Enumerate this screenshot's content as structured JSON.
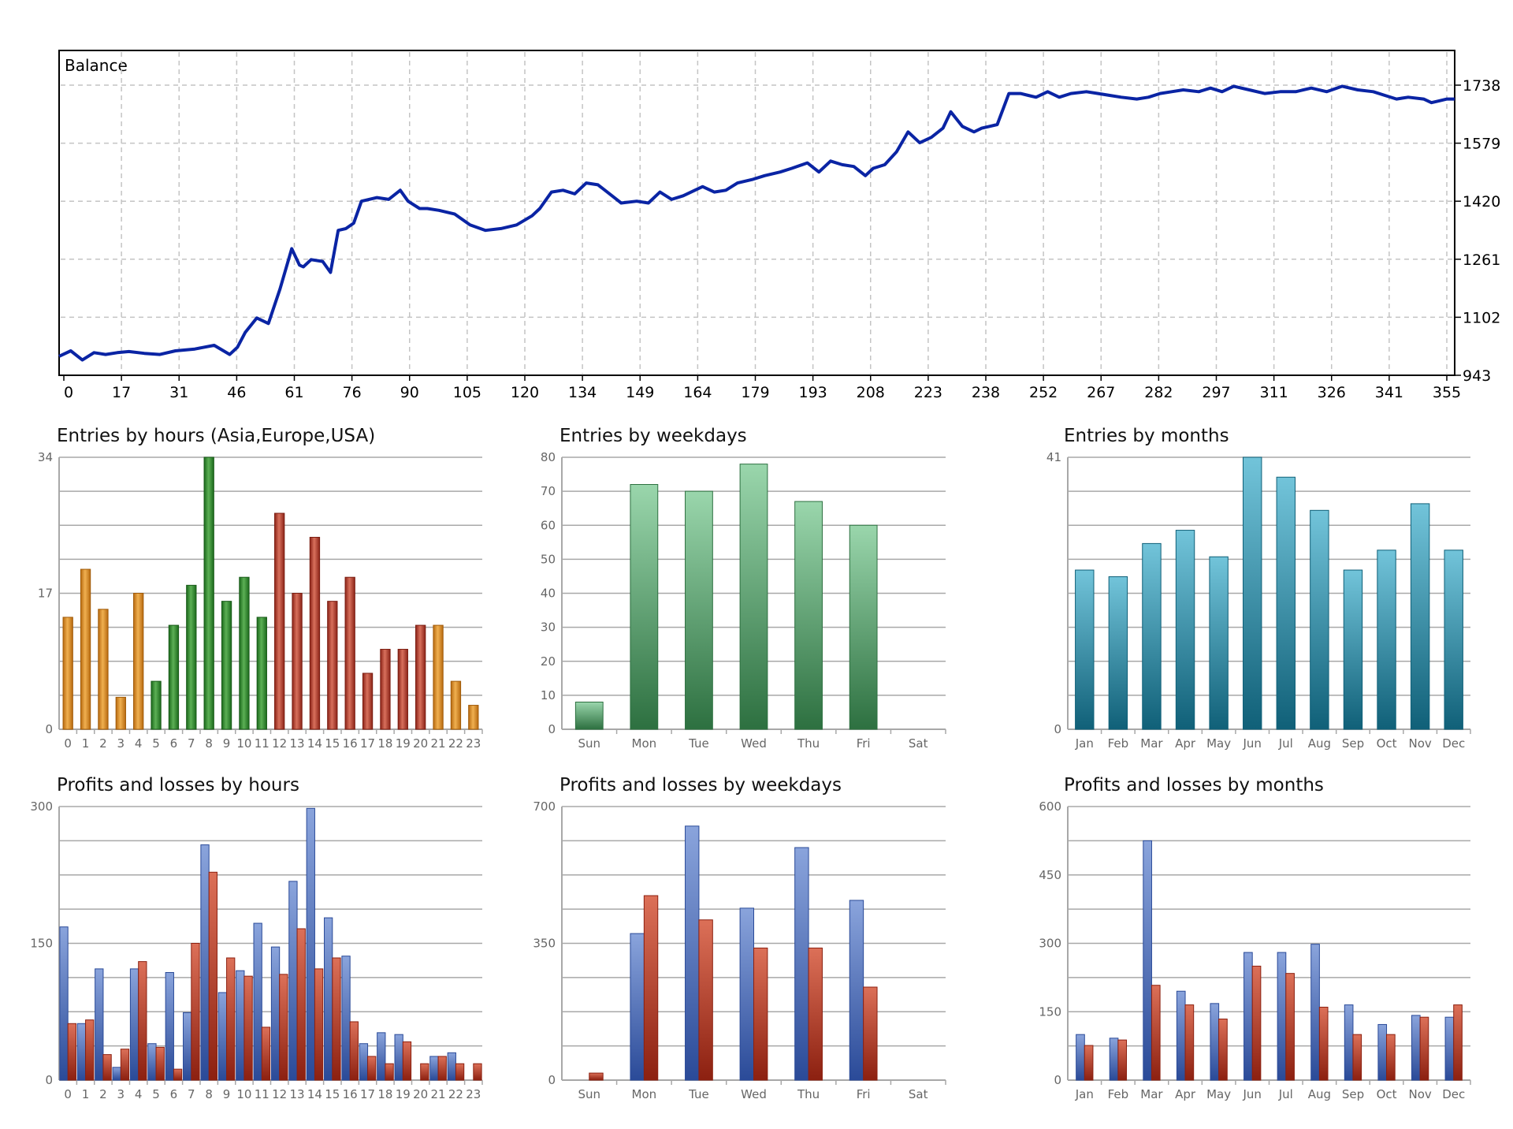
{
  "colors": {
    "balance_line": "#0a24a4",
    "grid_dashed": "#c0c0c0",
    "grid_solid": "#a8a8a8",
    "hours_asia": "#d4861c",
    "hours_europe": "#2e8a2a",
    "hours_usa": "#b3402c",
    "weekday_green": "#3a8a55",
    "month_teal": "#1f7f99",
    "profit_blue": "#3f65b4",
    "loss_red": "#b0321f"
  },
  "chart_data": [
    {
      "id": "balance",
      "type": "line",
      "title": "Balance",
      "x_ticks": [
        "0",
        "17",
        "31",
        "46",
        "61",
        "76",
        "90",
        "105",
        "120",
        "134",
        "149",
        "164",
        "179",
        "193",
        "208",
        "223",
        "238",
        "252",
        "267",
        "282",
        "297",
        "311",
        "326",
        "341",
        "355"
      ],
      "y_ticks": [
        "943",
        "1102",
        "1261",
        "1420",
        "1579",
        "1738"
      ],
      "xlim": [
        0,
        360
      ],
      "ylim": [
        943,
        1738
      ],
      "grid": true,
      "series": [
        {
          "x": [
            0,
            3,
            6,
            9,
            12,
            15,
            18,
            22,
            26,
            30,
            35,
            40,
            44,
            46,
            48,
            51,
            54,
            57,
            60,
            62,
            63,
            65,
            68,
            70,
            72,
            74,
            76,
            78,
            82,
            85,
            88,
            90,
            93,
            95,
            98,
            102,
            106,
            110,
            114,
            118,
            122,
            124,
            127,
            130,
            133,
            136,
            139,
            142,
            145,
            149,
            152,
            155,
            158,
            161,
            164,
            166,
            169,
            172,
            175,
            179,
            182,
            186,
            189,
            193,
            196,
            199,
            202,
            205,
            208,
            210,
            213,
            216,
            219,
            222,
            225,
            228,
            230,
            233,
            236,
            238,
            240,
            242,
            245,
            248,
            250,
            252,
            255,
            258,
            261,
            265,
            268,
            271,
            274,
            278,
            281,
            284,
            287,
            290,
            294,
            297,
            300,
            303,
            307,
            311,
            315,
            319,
            323,
            327,
            331,
            335,
            339,
            342,
            345,
            348,
            352,
            354,
            356,
            358,
            360
          ],
          "y": [
            995,
            1010,
            985,
            1005,
            1000,
            1005,
            1008,
            1003,
            1000,
            1010,
            1015,
            1025,
            1000,
            1020,
            1060,
            1100,
            1085,
            1180,
            1290,
            1245,
            1240,
            1260,
            1255,
            1225,
            1340,
            1345,
            1360,
            1420,
            1430,
            1425,
            1450,
            1420,
            1400,
            1400,
            1395,
            1385,
            1355,
            1340,
            1345,
            1355,
            1380,
            1400,
            1445,
            1450,
            1440,
            1470,
            1465,
            1440,
            1415,
            1420,
            1415,
            1445,
            1425,
            1435,
            1450,
            1460,
            1445,
            1450,
            1470,
            1480,
            1490,
            1500,
            1510,
            1525,
            1500,
            1530,
            1520,
            1515,
            1490,
            1510,
            1520,
            1555,
            1610,
            1580,
            1595,
            1620,
            1665,
            1625,
            1610,
            1620,
            1625,
            1630,
            1715,
            1715,
            1710,
            1705,
            1720,
            1705,
            1715,
            1720,
            1715,
            1710,
            1705,
            1700,
            1705,
            1715,
            1720,
            1725,
            1720,
            1730,
            1720,
            1735,
            1725,
            1715,
            1720,
            1720,
            1730,
            1720,
            1735,
            1725,
            1720,
            1710,
            1700,
            1705,
            1700,
            1690,
            1695,
            1700,
            1700
          ]
        }
      ]
    },
    {
      "id": "entries-hours",
      "type": "bar",
      "title": "Entries by hours (Asia,Europe,USA)",
      "categories": [
        "0",
        "1",
        "2",
        "3",
        "4",
        "5",
        "6",
        "7",
        "8",
        "9",
        "10",
        "11",
        "12",
        "13",
        "14",
        "15",
        "16",
        "17",
        "18",
        "19",
        "20",
        "21",
        "22",
        "23"
      ],
      "values": [
        14,
        20,
        15,
        4,
        17,
        6,
        13,
        18,
        34,
        16,
        19,
        14,
        27,
        17,
        24,
        16,
        19,
        7,
        10,
        10,
        13,
        13,
        6,
        3
      ],
      "segments": [
        "asia",
        "asia",
        "asia",
        "asia",
        "asia",
        "europe",
        "europe",
        "europe",
        "europe",
        "europe",
        "europe",
        "europe",
        "usa",
        "usa",
        "usa",
        "usa",
        "usa",
        "usa",
        "usa",
        "usa",
        "usa",
        "asia",
        "asia",
        "asia"
      ],
      "y_ticks": [
        "0",
        "17",
        "34"
      ],
      "ylim": [
        0,
        34
      ]
    },
    {
      "id": "entries-weekdays",
      "type": "bar",
      "title": "Entries by weekdays",
      "categories": [
        "Sun",
        "Mon",
        "Tue",
        "Wed",
        "Thu",
        "Fri",
        "Sat"
      ],
      "values": [
        8,
        72,
        70,
        78,
        67,
        60,
        0
      ],
      "y_ticks": [
        "0",
        "10",
        "20",
        "30",
        "40",
        "50",
        "60",
        "70",
        "80"
      ],
      "ylim": [
        0,
        80
      ]
    },
    {
      "id": "entries-months",
      "type": "bar",
      "title": "Entries by months",
      "categories": [
        "Jan",
        "Feb",
        "Mar",
        "Apr",
        "May",
        "Jun",
        "Jul",
        "Aug",
        "Sep",
        "Oct",
        "Nov",
        "Dec"
      ],
      "values": [
        24,
        23,
        28,
        30,
        26,
        41,
        38,
        33,
        24,
        27,
        34,
        27
      ],
      "y_ticks": [
        "0",
        "41"
      ],
      "ylim": [
        0,
        41
      ]
    },
    {
      "id": "pl-hours",
      "type": "bar",
      "title": "Profits and losses by hours",
      "categories": [
        "0",
        "1",
        "2",
        "3",
        "4",
        "5",
        "6",
        "7",
        "8",
        "9",
        "10",
        "11",
        "12",
        "13",
        "14",
        "15",
        "16",
        "17",
        "18",
        "19",
        "20",
        "21",
        "22",
        "23"
      ],
      "series": [
        {
          "values": [
            168,
            62,
            122,
            14,
            122,
            40,
            118,
            74,
            258,
            96,
            120,
            172,
            146,
            218,
            298,
            178,
            136,
            40,
            52,
            50,
            0,
            26,
            30,
            0
          ]
        },
        {
          "values": [
            62,
            66,
            28,
            34,
            130,
            36,
            12,
            150,
            228,
            134,
            114,
            58,
            116,
            166,
            122,
            134,
            64,
            26,
            18,
            42,
            18,
            26,
            18,
            18
          ]
        }
      ],
      "y_ticks": [
        "0",
        "150",
        "300"
      ],
      "ylim": [
        0,
        300
      ]
    },
    {
      "id": "pl-weekdays",
      "type": "bar",
      "title": "Profits and losses by weekdays",
      "categories": [
        "Sun",
        "Mon",
        "Tue",
        "Wed",
        "Thu",
        "Fri",
        "Sat"
      ],
      "series": [
        {
          "values": [
            0,
            375,
            650,
            440,
            595,
            460,
            0
          ]
        },
        {
          "values": [
            18,
            472,
            410,
            338,
            338,
            238,
            0
          ]
        }
      ],
      "y_ticks": [
        "0",
        "350",
        "700"
      ],
      "ylim": [
        0,
        700
      ]
    },
    {
      "id": "pl-months",
      "type": "bar",
      "title": "Profits and losses by months",
      "categories": [
        "Jan",
        "Feb",
        "Mar",
        "Apr",
        "May",
        "Jun",
        "Jul",
        "Aug",
        "Sep",
        "Oct",
        "Nov",
        "Dec"
      ],
      "series": [
        {
          "values": [
            100,
            92,
            525,
            195,
            168,
            280,
            280,
            298,
            165,
            122,
            142,
            138
          ]
        },
        {
          "values": [
            76,
            88,
            208,
            165,
            134,
            250,
            234,
            160,
            100,
            100,
            138,
            165
          ]
        }
      ],
      "y_ticks": [
        "0",
        "150",
        "300",
        "450",
        "600"
      ],
      "ylim": [
        0,
        600
      ]
    }
  ]
}
